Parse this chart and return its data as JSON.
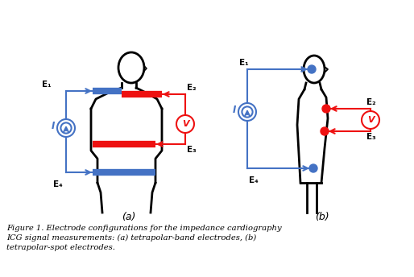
{
  "blue": "#4472C4",
  "red": "#EE1111",
  "black": "#000000",
  "bg": "#FFFFFF",
  "fig_width": 5.14,
  "fig_height": 3.44,
  "dpi": 100,
  "caption": "Figure 1. Electrode configurations for the impedance cardiography\nICG signal measurements: (a) tetrapolar-band electrodes, (b)\ntetrapolar-spot electrodes.",
  "label_a": "(a)",
  "label_b": "(b)"
}
